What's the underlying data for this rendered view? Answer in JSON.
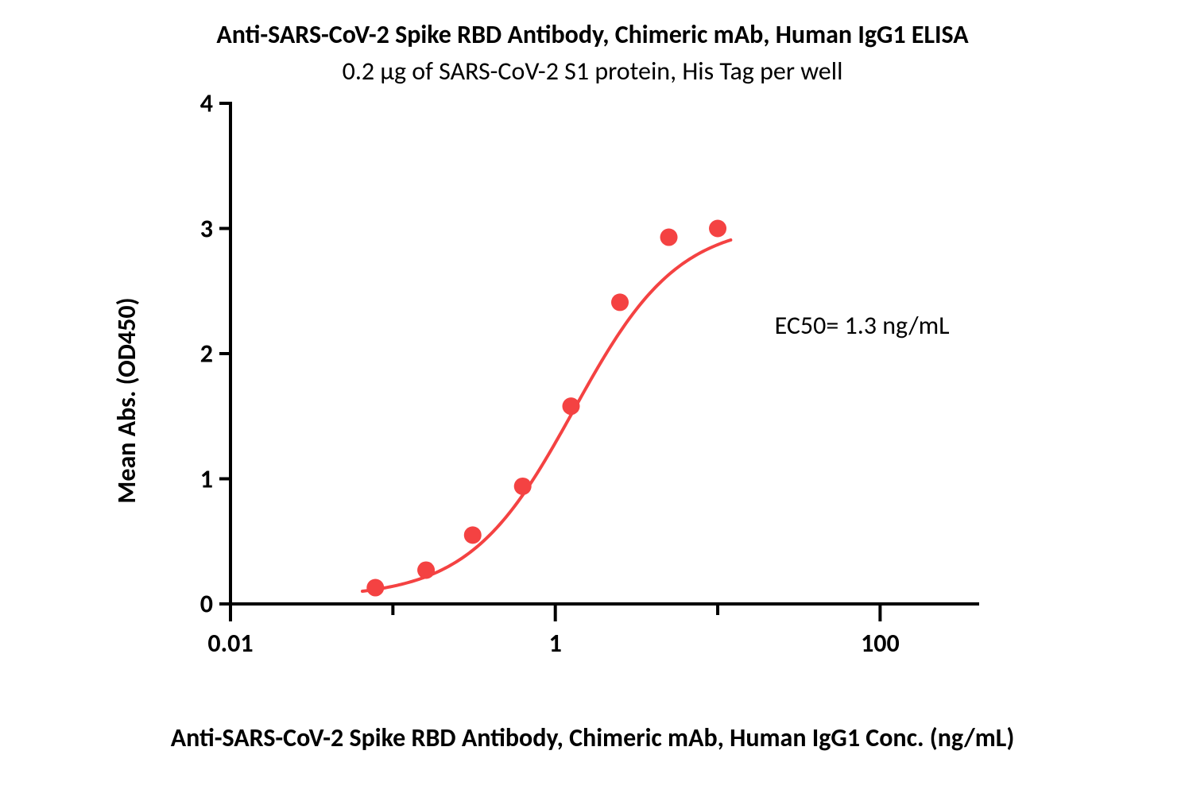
{
  "chart": {
    "type": "scatter-line-logx",
    "title": "Anti-SARS-CoV-2 Spike RBD Antibody, Chimeric mAb, Human IgG1 ELISA",
    "subtitle": "0.2 μg of SARS-CoV-2 S1 protein, His Tag per well",
    "xlabel": "Anti-SARS-CoV-2 Spike RBD Antibody, Chimeric mAb, Human IgG1 Conc. (ng/mL)",
    "ylabel": "Mean Abs. (OD450)",
    "annotation": "EC50= 1.3 ng/mL",
    "annotation_pos_log10x": 1.35,
    "annotation_pos_y": 2.35,
    "background_color": "#ffffff",
    "axis_color": "#000000",
    "axis_width": 4,
    "tick_length": 14,
    "tick_width": 4,
    "x_scale": "log10",
    "xlim_log10": [
      -2,
      2.6
    ],
    "ylim": [
      0,
      4
    ],
    "y_ticks": [
      0,
      1,
      2,
      3,
      4
    ],
    "x_major_ticks_log10": [
      -2,
      0,
      2
    ],
    "x_major_tick_labels": [
      "0.01",
      "1",
      "100"
    ],
    "x_minor_ticks_log10": [
      -1,
      1
    ],
    "series": {
      "color": "#f44242",
      "marker_radius": 11,
      "line_width": 4,
      "points": [
        {
          "x": 0.078,
          "y": 0.13
        },
        {
          "x": 0.16,
          "y": 0.27
        },
        {
          "x": 0.31,
          "y": 0.55
        },
        {
          "x": 0.63,
          "y": 0.94
        },
        {
          "x": 1.25,
          "y": 1.58
        },
        {
          "x": 2.5,
          "y": 2.41
        },
        {
          "x": 5.0,
          "y": 2.93
        },
        {
          "x": 10.0,
          "y": 3.0
        }
      ],
      "curve_fit": {
        "top": 3.05,
        "bottom": 0.05,
        "ec50": 1.3,
        "hill": 1.35
      }
    },
    "fonts": {
      "title_size": 32,
      "title_weight": 700,
      "subtitle_size": 32,
      "subtitle_weight": 400,
      "axis_label_size": 32,
      "axis_label_weight": 700,
      "tick_label_size": 32,
      "tick_label_weight": 700,
      "annotation_size": 32,
      "annotation_weight": 400
    }
  }
}
